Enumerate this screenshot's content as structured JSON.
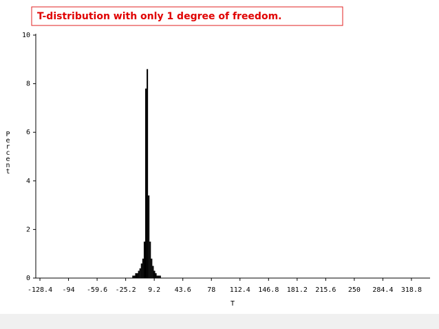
{
  "chart_data": {
    "type": "histogram",
    "title": "T-distribution with only 1 degree of freedom.",
    "x_label": "T",
    "y_label": "Percent",
    "bins": [
      -17.2,
      -15.48,
      -13.76,
      -12.04,
      -10.32,
      -8.6,
      -6.88,
      -5.16,
      -3.44,
      -1.72,
      0,
      1.72,
      3.44,
      5.16,
      6.88,
      8.6,
      10.32,
      12.04,
      13.76,
      15.48,
      17.2
    ],
    "values": [
      0.1,
      0.1,
      0.2,
      0.2,
      0.3,
      0.4,
      0.6,
      0.8,
      1.5,
      7.8,
      8.6,
      3.4,
      1.5,
      0.8,
      0.5,
      0.3,
      0.2,
      0.1,
      0.1,
      0.1
    ],
    "color": "#000000",
    "xlim": [
      -133.4,
      341.2
    ],
    "xticks": [
      -128.4,
      -94,
      -59.6,
      -25.2,
      9.2,
      43.6,
      78,
      112.4,
      146.8,
      181.2,
      215.6,
      250,
      284.4,
      318.8
    ],
    "ylim": [
      0,
      10
    ],
    "yticks": [
      0,
      2,
      4,
      6,
      8,
      10
    ]
  }
}
